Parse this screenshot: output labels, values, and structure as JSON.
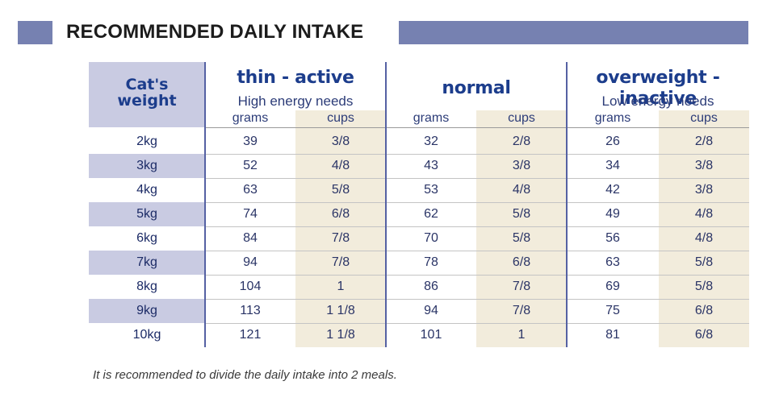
{
  "header": {
    "title": "RECOMMENDED DAILY INTAKE"
  },
  "table": {
    "weight_header": "Cat's weight",
    "groups": [
      {
        "title": "thin - active",
        "subtitle": "High energy needs"
      },
      {
        "title": "normal",
        "subtitle": ""
      },
      {
        "title": "overweight - inactive",
        "subtitle": "Low energy needs"
      }
    ],
    "units": [
      "grams",
      "cups",
      "grams",
      "cups",
      "grams",
      "cups"
    ],
    "rows": [
      {
        "weight": "2kg",
        "values": [
          "39",
          "3/8",
          "32",
          "2/8",
          "26",
          "2/8"
        ]
      },
      {
        "weight": "3kg",
        "values": [
          "52",
          "4/8",
          "43",
          "3/8",
          "34",
          "3/8"
        ]
      },
      {
        "weight": "4kg",
        "values": [
          "63",
          "5/8",
          "53",
          "4/8",
          "42",
          "3/8"
        ]
      },
      {
        "weight": "5kg",
        "values": [
          "74",
          "6/8",
          "62",
          "5/8",
          "49",
          "4/8"
        ]
      },
      {
        "weight": "6kg",
        "values": [
          "84",
          "7/8",
          "70",
          "5/8",
          "56",
          "4/8"
        ]
      },
      {
        "weight": "7kg",
        "values": [
          "94",
          "7/8",
          "78",
          "6/8",
          "63",
          "5/8"
        ]
      },
      {
        "weight": "8kg",
        "values": [
          "104",
          "1",
          "86",
          "7/8",
          "69",
          "5/8"
        ]
      },
      {
        "weight": "9kg",
        "values": [
          "113",
          "1 1/8",
          "94",
          "7/8",
          "75",
          "6/8"
        ]
      },
      {
        "weight": "10kg",
        "values": [
          "121",
          "1 1/8",
          "101",
          "1",
          "81",
          "6/8"
        ]
      }
    ]
  },
  "footnote": "It is recommended to divide the daily intake into 2 meals.",
  "colors": {
    "header_bar": "#7681b1",
    "weight_highlight": "#c9cbe2",
    "cups_column": "#f2ecdc",
    "title_blue": "#1c3d8c",
    "divider": "#5561a3"
  }
}
